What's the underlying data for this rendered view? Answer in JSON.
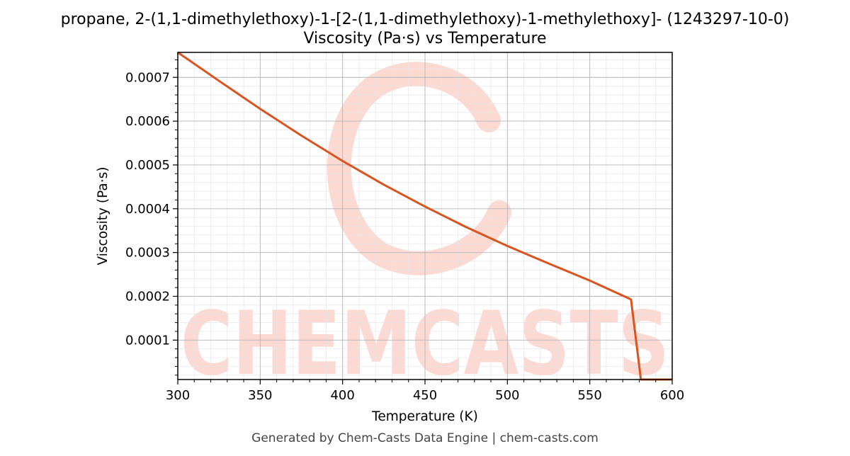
{
  "chart_data": {
    "type": "line",
    "title": "propane, 2-(1,1-dimethylethoxy)-1-[2-(1,1-dimethylethoxy)-1-methylethoxy]- (1243297-10-0)",
    "subtitle": "Viscosity (Pa·s) vs Temperature",
    "xlabel": "Temperature (K)",
    "ylabel": "Viscosity (Pa·s)",
    "xlim": [
      300,
      600
    ],
    "ylim": [
      1e-05,
      0.000757
    ],
    "x_ticks": [
      300,
      350,
      400,
      450,
      500,
      550,
      600
    ],
    "y_ticks": [
      0.0001,
      0.0002,
      0.0003,
      0.0004,
      0.0005,
      0.0006,
      0.0007
    ],
    "x_tick_labels": [
      "300",
      "350",
      "400",
      "450",
      "500",
      "550",
      "600"
    ],
    "y_tick_labels": [
      "0.0001",
      "0.0002",
      "0.0003",
      "0.0004",
      "0.0005",
      "0.0006",
      "0.0007"
    ],
    "grid": true,
    "series": [
      {
        "color": "#d9541e",
        "x": [
          300,
          325,
          350,
          375,
          400,
          425,
          450,
          475,
          500,
          525,
          550,
          575,
          581,
          600
        ],
        "y": [
          0.000757,
          0.000692,
          0.000628,
          0.000567,
          0.000509,
          0.000455,
          0.000405,
          0.000358,
          0.000315,
          0.000275,
          0.000236,
          0.000193,
          1e-05,
          1e-05
        ]
      }
    ]
  },
  "watermark": {
    "text": "CHEMCASTS",
    "color": "#fcd8d0"
  },
  "footer": "Generated by Chem-Casts Data Engine | chem-casts.com"
}
